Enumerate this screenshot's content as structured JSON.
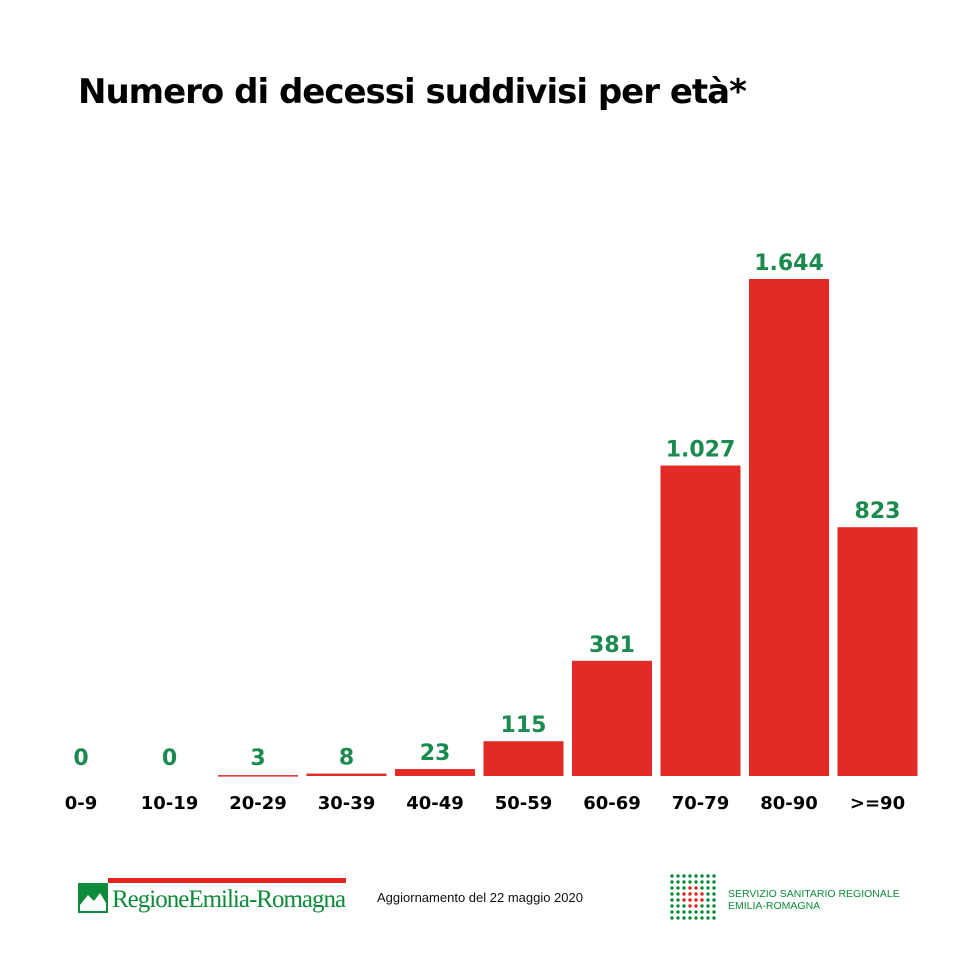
{
  "header": {
    "title": "Numero di decessi suddivisi per età*"
  },
  "chart_data": {
    "type": "bar",
    "title": "Numero di decessi suddivisi per età*",
    "categories": [
      "0-9",
      "10-19",
      "20-29",
      "30-39",
      "40-49",
      "50-59",
      "60-69",
      "70-79",
      "80-90",
      ">=90"
    ],
    "values": [
      0,
      0,
      3,
      8,
      23,
      115,
      381,
      1027,
      1644,
      823
    ],
    "value_labels": [
      "0",
      "0",
      "3",
      "8",
      "23",
      "115",
      "381",
      "1.027",
      "1.644",
      "823"
    ],
    "xlabel": "",
    "ylabel": "",
    "ylim": [
      0,
      1644
    ],
    "grid": false,
    "legend": "none",
    "bar_color": "#e22a26",
    "label_color": "#1a8a4f"
  },
  "footer": {
    "logo_text": "RegioneEmilia-Romagna",
    "update_text": "Aggiornamento del 22 maggio 2020",
    "ssr_line1": "SERVIZIO SANITARIO REGIONALE",
    "ssr_line2": "EMILIA-ROMAGNA"
  },
  "colors": {
    "brand_green": "#0d8a3a",
    "brand_red": "#e2241f"
  }
}
